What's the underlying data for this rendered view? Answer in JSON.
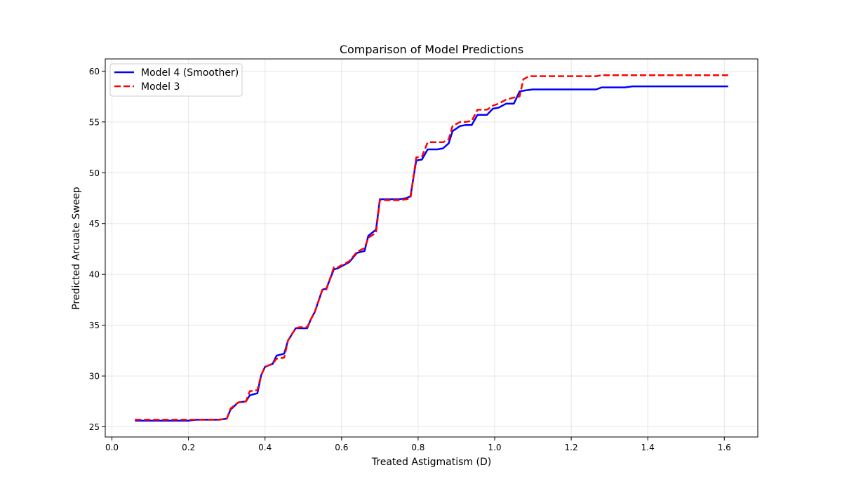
{
  "chart_data": {
    "type": "line",
    "title": "Comparison of Model Predictions",
    "xlabel": "Treated Astigmatism (D)",
    "ylabel": "Predicted Arcuate Sweep",
    "xlim": [
      -0.0175,
      1.6875
    ],
    "ylim": [
      24.0,
      61.2
    ],
    "xticks": [
      0.0,
      0.2,
      0.4,
      0.6,
      0.8,
      1.0,
      1.2,
      1.4,
      1.6
    ],
    "xtick_labels": [
      "0.0",
      "0.2",
      "0.4",
      "0.6",
      "0.8",
      "1.0",
      "1.2",
      "1.4",
      "1.6"
    ],
    "yticks": [
      25,
      30,
      35,
      40,
      45,
      50,
      55,
      60
    ],
    "ytick_labels": [
      "25",
      "30",
      "35",
      "40",
      "45",
      "50",
      "55",
      "60"
    ],
    "grid": true,
    "legend_position": "upper-left",
    "series": [
      {
        "name": "Model 4 (Smoother)",
        "color": "#0000ff",
        "linestyle": "solid",
        "x": [
          0.06,
          0.1,
          0.15,
          0.2,
          0.22,
          0.25,
          0.28,
          0.3,
          0.31,
          0.33,
          0.35,
          0.36,
          0.38,
          0.39,
          0.4,
          0.42,
          0.43,
          0.45,
          0.46,
          0.48,
          0.49,
          0.51,
          0.52,
          0.53,
          0.55,
          0.56,
          0.58,
          0.59,
          0.61,
          0.62,
          0.64,
          0.66,
          0.67,
          0.69,
          0.7,
          0.72,
          0.75,
          0.77,
          0.78,
          0.795,
          0.81,
          0.825,
          0.85,
          0.865,
          0.88,
          0.89,
          0.91,
          0.925,
          0.94,
          0.955,
          0.98,
          0.995,
          1.01,
          1.03,
          1.05,
          1.065,
          1.08,
          1.1,
          1.15,
          1.2,
          1.265,
          1.28,
          1.34,
          1.36,
          1.4,
          1.5,
          1.61
        ],
        "y": [
          25.6,
          25.6,
          25.6,
          25.6,
          25.7,
          25.7,
          25.7,
          25.8,
          26.7,
          27.4,
          27.5,
          28.1,
          28.3,
          30.1,
          30.9,
          31.2,
          32.0,
          32.2,
          33.5,
          34.7,
          34.7,
          34.7,
          35.6,
          36.3,
          38.5,
          38.6,
          40.5,
          40.6,
          41.0,
          41.2,
          42.1,
          42.3,
          43.8,
          44.4,
          47.4,
          47.4,
          47.4,
          47.5,
          47.7,
          51.2,
          51.3,
          52.3,
          52.3,
          52.4,
          52.9,
          54.1,
          54.6,
          54.7,
          54.7,
          55.7,
          55.7,
          56.3,
          56.4,
          56.8,
          56.8,
          58.0,
          58.1,
          58.2,
          58.2,
          58.2,
          58.2,
          58.4,
          58.4,
          58.5,
          58.5,
          58.5,
          58.5
        ]
      },
      {
        "name": "Model 3",
        "color": "#ff0000",
        "linestyle": "dashed",
        "x": [
          0.06,
          0.1,
          0.15,
          0.2,
          0.22,
          0.25,
          0.28,
          0.3,
          0.31,
          0.33,
          0.35,
          0.36,
          0.38,
          0.39,
          0.4,
          0.42,
          0.43,
          0.45,
          0.46,
          0.48,
          0.49,
          0.51,
          0.52,
          0.53,
          0.55,
          0.56,
          0.58,
          0.59,
          0.61,
          0.62,
          0.64,
          0.66,
          0.67,
          0.69,
          0.7,
          0.72,
          0.75,
          0.77,
          0.78,
          0.795,
          0.81,
          0.825,
          0.85,
          0.865,
          0.88,
          0.89,
          0.91,
          0.925,
          0.94,
          0.955,
          0.98,
          0.995,
          1.01,
          1.03,
          1.05,
          1.065,
          1.075,
          1.09,
          1.15,
          1.2,
          1.265,
          1.28,
          1.34,
          1.36,
          1.4,
          1.5,
          1.61
        ],
        "y": [
          25.7,
          25.7,
          25.7,
          25.7,
          25.7,
          25.7,
          25.7,
          25.8,
          26.8,
          27.4,
          27.5,
          28.5,
          28.6,
          30.1,
          30.9,
          31.2,
          31.7,
          31.8,
          33.5,
          34.7,
          34.8,
          34.8,
          35.6,
          36.3,
          38.5,
          38.5,
          40.7,
          40.7,
          41.1,
          41.3,
          42.2,
          42.6,
          43.6,
          44.1,
          47.3,
          47.3,
          47.3,
          47.4,
          47.5,
          51.5,
          51.6,
          53.0,
          53.0,
          53.0,
          53.3,
          54.6,
          55.0,
          55.0,
          55.1,
          56.2,
          56.2,
          56.6,
          56.8,
          57.2,
          57.4,
          57.5,
          59.2,
          59.5,
          59.5,
          59.5,
          59.5,
          59.6,
          59.6,
          59.6,
          59.6,
          59.6,
          59.6
        ]
      }
    ]
  }
}
